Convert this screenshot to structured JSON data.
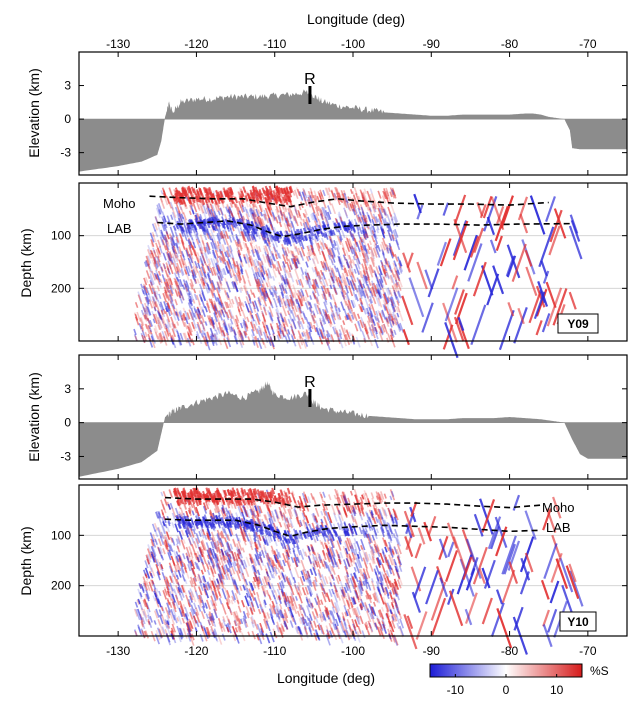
{
  "chart_data": [
    {
      "type": "area",
      "panel": "elevation-top",
      "ylabel": "Elevation (km)",
      "yticks": [
        "3",
        "0",
        "-3"
      ],
      "ylim": [
        -5.0,
        6.0
      ],
      "xlim": [
        -135,
        -65
      ],
      "annotation": "R",
      "annotation_x": -105.5,
      "profile": {
        "x": [
          -135,
          -130,
          -127,
          -125,
          -124.5,
          -124,
          -123.5,
          -123,
          -122,
          -120,
          -118,
          -116,
          -114,
          -112,
          -110,
          -108,
          -106,
          -105,
          -104,
          -102,
          -100,
          -98,
          -96,
          -94,
          -92,
          -90,
          -88,
          -86,
          -84,
          -82,
          -80,
          -78,
          -77,
          -76,
          -75,
          -74,
          -73,
          -72.3,
          -72,
          -71,
          -68,
          -66,
          -65
        ],
        "y": [
          -4.7,
          -4.2,
          -3.8,
          -3.2,
          -2.0,
          0.2,
          1.4,
          0.6,
          1.5,
          1.8,
          1.8,
          2.0,
          2.0,
          2.0,
          2.1,
          2.2,
          2.4,
          2.1,
          1.6,
          1.2,
          1.0,
          0.8,
          0.6,
          0.5,
          0.4,
          0.3,
          0.3,
          0.4,
          0.4,
          0.4,
          0.4,
          0.5,
          0.5,
          0.4,
          0.2,
          0.1,
          0.0,
          -1.0,
          -2.6,
          -2.7,
          -2.7,
          -2.7,
          -2.7
        ]
      }
    },
    {
      "type": "heatmap",
      "panel": "depth-top",
      "ylabel": "Depth (km)",
      "yticks": [
        "100",
        "200"
      ],
      "ylim": [
        0,
        300
      ],
      "xlim": [
        -135,
        -65
      ],
      "tag": "Y09",
      "lines": [
        {
          "name": "Moho",
          "x": [
            -126,
            -122,
            -118,
            -114,
            -111,
            -108,
            -105,
            -102,
            -99,
            -95,
            -90,
            -85,
            -80,
            -75
          ],
          "y": [
            25,
            28,
            30,
            30,
            38,
            45,
            36,
            30,
            34,
            38,
            40,
            40,
            42,
            37
          ]
        },
        {
          "name": "LAB",
          "x": [
            -125,
            -122,
            -119,
            -116,
            -113,
            -111,
            -109,
            -107,
            -104,
            -101,
            -98,
            -94,
            -89,
            -84,
            -79,
            -72
          ],
          "y": [
            75,
            78,
            75,
            72,
            80,
            92,
            102,
            97,
            88,
            82,
            80,
            78,
            78,
            80,
            78,
            77
          ]
        }
      ]
    },
    {
      "type": "area",
      "panel": "elevation-bottom",
      "ylabel": "Elevation (km)",
      "yticks": [
        "3",
        "0",
        "-3"
      ],
      "ylim": [
        -5.0,
        6.0
      ],
      "xlim": [
        -135,
        -65
      ],
      "annotation": "R",
      "annotation_x": -105.5,
      "profile": {
        "x": [
          -135,
          -130,
          -127,
          -125,
          -124.5,
          -124,
          -123,
          -122,
          -120,
          -118,
          -116,
          -114,
          -112,
          -111,
          -110,
          -108,
          -106,
          -105,
          -104,
          -102,
          -100,
          -98,
          -96,
          -94,
          -92,
          -90,
          -88,
          -86,
          -84,
          -82,
          -80,
          -78,
          -76,
          -74,
          -73,
          -72,
          -71,
          -70,
          -68,
          -66,
          -65
        ],
        "y": [
          -4.8,
          -4.1,
          -3.5,
          -2.5,
          -1.0,
          0.5,
          1.0,
          1.3,
          1.8,
          2.2,
          2.6,
          2.2,
          2.8,
          3.5,
          2.5,
          2.2,
          2.6,
          1.8,
          1.3,
          1.0,
          0.8,
          0.6,
          0.5,
          0.4,
          0.3,
          0.3,
          0.3,
          0.4,
          0.4,
          0.4,
          0.5,
          0.4,
          0.3,
          0.1,
          0.0,
          -1.5,
          -2.8,
          -3.2,
          -3.2,
          -3.2,
          -3.2
        ]
      }
    },
    {
      "type": "heatmap",
      "panel": "depth-bottom",
      "ylabel": "Depth (km)",
      "yticks": [
        "100",
        "200"
      ],
      "ylim": [
        0,
        300
      ],
      "xlim": [
        -135,
        -65
      ],
      "tag": "Y10",
      "lines": [
        {
          "name": "Moho",
          "x": [
            -124,
            -120,
            -116,
            -113,
            -110,
            -107,
            -104,
            -100,
            -96,
            -92,
            -88,
            -84,
            -80,
            -76
          ],
          "y": [
            25,
            28,
            28,
            28,
            34,
            44,
            40,
            38,
            36,
            36,
            38,
            42,
            45,
            40
          ]
        },
        {
          "name": "LAB",
          "x": [
            -124,
            -121,
            -118,
            -115,
            -112,
            -110,
            -108,
            -106,
            -103,
            -100,
            -96,
            -92,
            -88,
            -84,
            -80,
            -76
          ],
          "y": [
            68,
            70,
            70,
            70,
            80,
            92,
            102,
            94,
            86,
            83,
            80,
            82,
            84,
            88,
            92,
            90
          ]
        }
      ]
    }
  ],
  "axes": {
    "top_xlabel": "Longitude (deg)",
    "bottom_xlabel": "Longitude (deg)",
    "xticks": [
      "-130",
      "-120",
      "-110",
      "-100",
      "-90",
      "-80",
      "-70"
    ]
  },
  "colorbar": {
    "label": "%S",
    "ticks": [
      "-10",
      "0",
      "10"
    ],
    "range": [
      -15,
      15
    ],
    "colors": [
      "#1b1bd6",
      "#ffffff",
      "#d61b1b"
    ]
  },
  "colors": {
    "terrain": "#8c8c8c",
    "positive": "#e23131",
    "negative": "#2929d8",
    "frame": "#000000",
    "grid": "#cfcfcf"
  }
}
